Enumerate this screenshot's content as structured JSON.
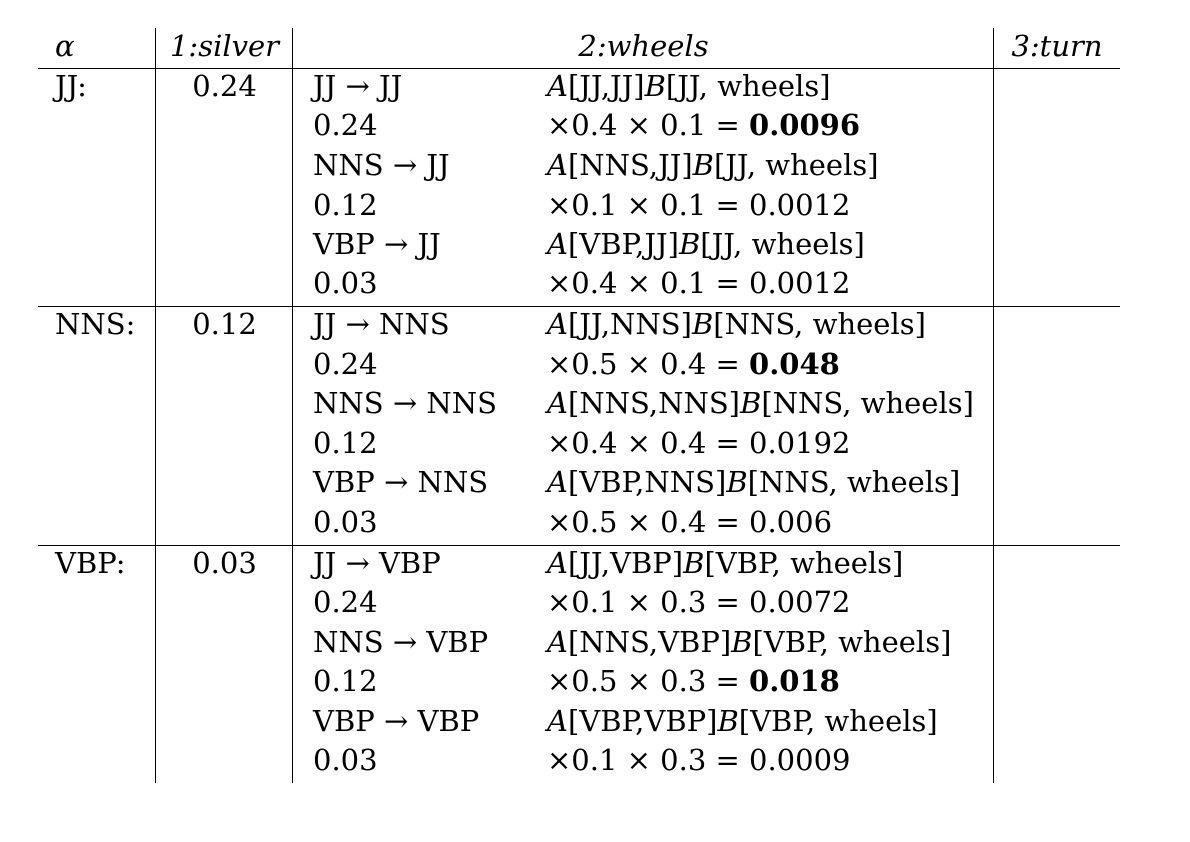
{
  "header": {
    "alpha": "α",
    "col1": "1:silver",
    "col2": "2:wheels",
    "col3": "3:turn"
  },
  "groups": [
    {
      "tag": "JJ:",
      "value": "0.24",
      "rows": [
        {
          "left": "JJ → JJ",
          "A": "A",
          "a_args": "[JJ,JJ]",
          "B": "B",
          "b_args": "[JJ, wheels]"
        },
        {
          "left": "0.24",
          "pre": "×0.4 × 0.1 = ",
          "result": "0.0096",
          "bold": true
        },
        {
          "left": "NNS → JJ",
          "A": "A",
          "a_args": "[NNS,JJ]",
          "B": "B",
          "b_args": "[JJ, wheels]"
        },
        {
          "left": "0.12",
          "pre": "×0.1 × 0.1 = ",
          "result": "0.0012",
          "bold": false
        },
        {
          "left": "VBP → JJ",
          "A": "A",
          "a_args": "[VBP,JJ]",
          "B": "B",
          "b_args": "[JJ, wheels]"
        },
        {
          "left": "0.03",
          "pre": "×0.4 × 0.1 = ",
          "result": "0.0012",
          "bold": false
        }
      ]
    },
    {
      "tag": "NNS:",
      "value": "0.12",
      "rows": [
        {
          "left": "JJ → NNS",
          "A": "A",
          "a_args": "[JJ,NNS]",
          "B": "B",
          "b_args": "[NNS, wheels]"
        },
        {
          "left": "0.24",
          "pre": "×0.5 × 0.4 = ",
          "result": "0.048",
          "bold": true
        },
        {
          "left": "NNS → NNS",
          "A": "A",
          "a_args": "[NNS,NNS]",
          "B": "B",
          "b_args": "[NNS, wheels]"
        },
        {
          "left": "0.12",
          "pre": "×0.4 × 0.4 = ",
          "result": "0.0192",
          "bold": false
        },
        {
          "left": "VBP → NNS",
          "A": "A",
          "a_args": "[VBP,NNS]",
          "B": "B",
          "b_args": "[NNS, wheels]"
        },
        {
          "left": "0.03",
          "pre": "×0.5 × 0.4 = ",
          "result": "0.006",
          "bold": false
        }
      ]
    },
    {
      "tag": "VBP:",
      "value": "0.03",
      "rows": [
        {
          "left": "JJ → VBP",
          "A": "A",
          "a_args": "[JJ,VBP]",
          "B": "B",
          "b_args": "[VBP, wheels]"
        },
        {
          "left": "0.24",
          "pre": "×0.1 × 0.3 = ",
          "result": "0.0072",
          "bold": false
        },
        {
          "left": "NNS → VBP",
          "A": "A",
          "a_args": "[NNS,VBP]",
          "B": "B",
          "b_args": "[VBP, wheels]"
        },
        {
          "left": "0.12",
          "pre": "×0.5 × 0.3 = ",
          "result": "0.018",
          "bold": true
        },
        {
          "left": "VBP → VBP",
          "A": "A",
          "a_args": "[VBP,VBP]",
          "B": "B",
          "b_args": "[VBP, wheels]"
        },
        {
          "left": "0.03",
          "pre": "×0.1 × 0.3 = ",
          "result": "0.0009",
          "bold": false
        }
      ]
    }
  ]
}
